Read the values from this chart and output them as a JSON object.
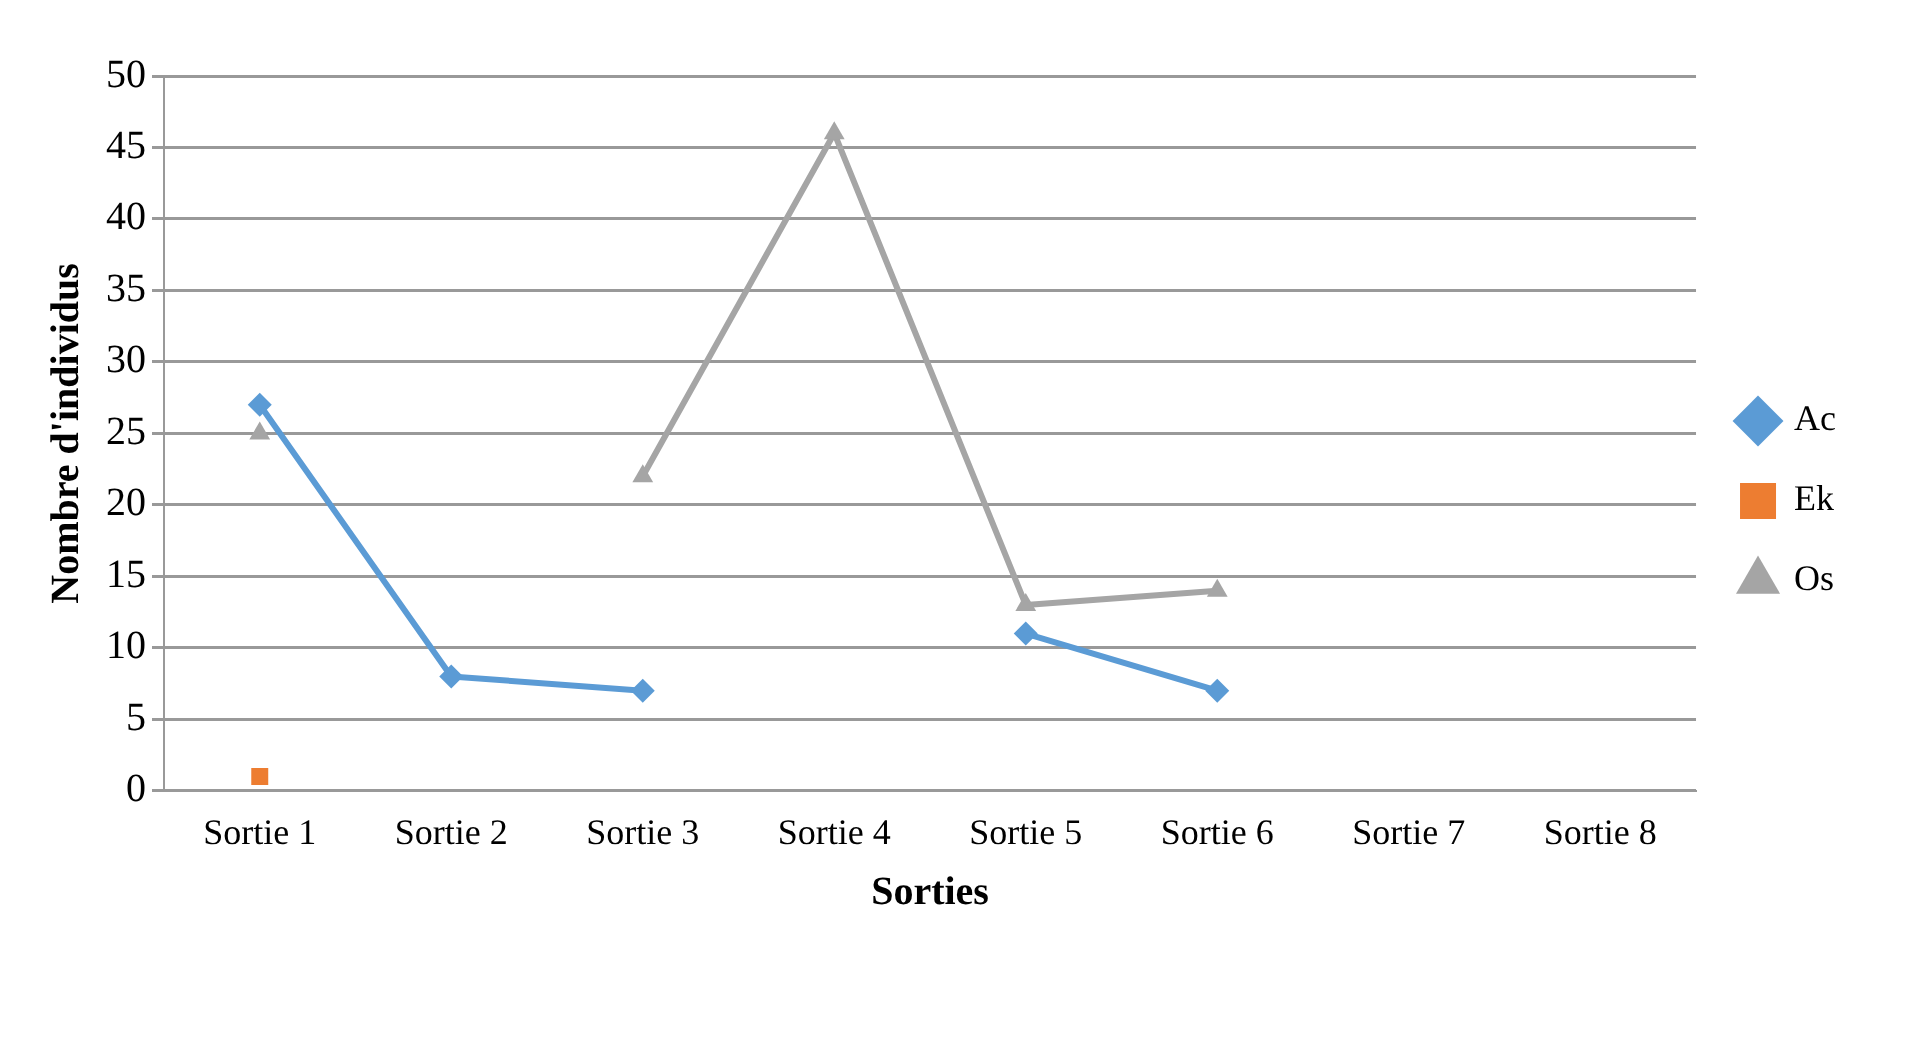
{
  "chart_data": {
    "type": "line",
    "xlabel": "Sorties",
    "ylabel": "Nombre d'individus",
    "categories": [
      "Sortie 1",
      "Sortie 2",
      "Sortie 3",
      "Sortie 4",
      "Sortie 5",
      "Sortie 6",
      "Sortie 7",
      "Sortie 8"
    ],
    "series": [
      {
        "name": "Ac",
        "color": "#5b9bd5",
        "marker": "diamond",
        "values": [
          27,
          8,
          7,
          null,
          11,
          7,
          null,
          null
        ]
      },
      {
        "name": "Ek",
        "color": "#ed7d31",
        "marker": "square",
        "values": [
          1,
          null,
          null,
          null,
          null,
          null,
          null,
          null
        ]
      },
      {
        "name": "Os",
        "color": "#a5a5a5",
        "marker": "triangle",
        "values": [
          25,
          null,
          22,
          46,
          13,
          14,
          null,
          null
        ]
      }
    ],
    "ylim": [
      0,
      50
    ],
    "yticks": [
      0,
      5,
      10,
      15,
      20,
      25,
      30,
      35,
      40,
      45,
      50
    ],
    "grid": "y",
    "legend": "right",
    "line_style": "solid"
  }
}
